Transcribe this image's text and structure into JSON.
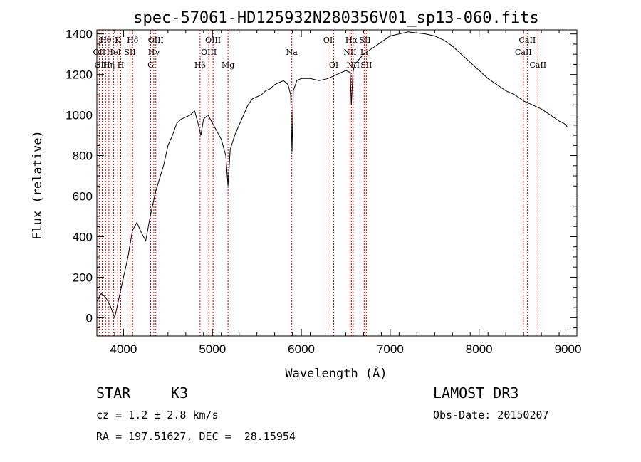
{
  "chart_data": {
    "type": "line",
    "title": "spec-57061-HD125932N280356V01_sp13-060.fits",
    "xlabel": "Wavelength (Å)",
    "ylabel": "Flux (relative)",
    "xlim": [
      3700,
      9100
    ],
    "ylim": [
      -90,
      1420
    ],
    "x_ticks": [
      4000,
      5000,
      6000,
      7000,
      8000,
      9000
    ],
    "y_ticks": [
      0,
      200,
      400,
      600,
      800,
      1000,
      1200,
      1400
    ],
    "line_color": "#000000",
    "marker_color": "#cc0000",
    "spectrum_x": [
      3700,
      3750,
      3800,
      3850,
      3900,
      3950,
      4000,
      4050,
      4100,
      4150,
      4200,
      4250,
      4300,
      4330,
      4360,
      4400,
      4450,
      4500,
      4550,
      4600,
      4650,
      4700,
      4750,
      4800,
      4850,
      4870,
      4900,
      4950,
      5000,
      5050,
      5100,
      5150,
      5175,
      5200,
      5250,
      5300,
      5350,
      5400,
      5450,
      5500,
      5550,
      5600,
      5650,
      5700,
      5750,
      5800,
      5850,
      5880,
      5895,
      5910,
      5950,
      6000,
      6100,
      6200,
      6300,
      6400,
      6500,
      6550,
      6563,
      6580,
      6600,
      6700,
      6800,
      6900,
      7000,
      7100,
      7200,
      7300,
      7400,
      7500,
      7600,
      7700,
      7800,
      7900,
      8000,
      8100,
      8200,
      8300,
      8400,
      8500,
      8600,
      8700,
      8800,
      8900,
      8950,
      8980,
      8990
    ],
    "spectrum_y": [
      80,
      120,
      100,
      60,
      0,
      100,
      200,
      300,
      430,
      470,
      420,
      380,
      500,
      560,
      620,
      680,
      750,
      850,
      900,
      960,
      980,
      990,
      1000,
      1020,
      940,
      900,
      980,
      1000,
      960,
      920,
      880,
      800,
      650,
      830,
      900,
      950,
      1000,
      1050,
      1080,
      1090,
      1100,
      1120,
      1130,
      1150,
      1160,
      1170,
      1150,
      1100,
      820,
      1120,
      1170,
      1180,
      1180,
      1170,
      1180,
      1200,
      1220,
      1210,
      1050,
      1210,
      1250,
      1300,
      1330,
      1360,
      1390,
      1400,
      1410,
      1405,
      1400,
      1390,
      1370,
      1340,
      1300,
      1260,
      1220,
      1180,
      1150,
      1120,
      1100,
      1070,
      1050,
      1030,
      1000,
      970,
      960,
      950,
      940
    ],
    "spectral_lines": [
      {
        "label": "Hθ",
        "wavelength": 3798,
        "row": 0
      },
      {
        "label": "OII",
        "wavelength": 3727,
        "row": 1
      },
      {
        "label": "OIII",
        "wavelength": 3760,
        "row": 2
      },
      {
        "label": "HeI",
        "wavelength": 3889,
        "row": 1
      },
      {
        "label": "Hη",
        "wavelength": 3835,
        "row": 2
      },
      {
        "label": "K",
        "wavelength": 3934,
        "row": 0
      },
      {
        "label": "SII",
        "wavelength": 4072,
        "row": 1
      },
      {
        "label": "H",
        "wavelength": 3969,
        "row": 2
      },
      {
        "label": "Hδ",
        "wavelength": 4102,
        "row": 0
      },
      {
        "label": "OIII",
        "wavelength": 4363,
        "row": 0
      },
      {
        "label": "Hγ",
        "wavelength": 4340,
        "row": 1
      },
      {
        "label": "G",
        "wavelength": 4305,
        "row": 2
      },
      {
        "label": "Hβ",
        "wavelength": 4861,
        "row": 2
      },
      {
        "label": "OIII",
        "wavelength": 5007,
        "row": 0
      },
      {
        "label": "OIII",
        "wavelength": 4959,
        "row": 1
      },
      {
        "label": "Mg",
        "wavelength": 5175,
        "row": 2
      },
      {
        "label": "Na",
        "wavelength": 5893,
        "row": 1
      },
      {
        "label": "OI",
        "wavelength": 6300,
        "row": 0
      },
      {
        "label": "OI",
        "wavelength": 6364,
        "row": 2
      },
      {
        "label": "Hα",
        "wavelength": 6563,
        "row": 0
      },
      {
        "label": "NII",
        "wavelength": 6548,
        "row": 1
      },
      {
        "label": "NII",
        "wavelength": 6583,
        "row": 2
      },
      {
        "label": "SII",
        "wavelength": 6716,
        "row": 0
      },
      {
        "label": "Li",
        "wavelength": 6707,
        "row": 1
      },
      {
        "label": "SII",
        "wavelength": 6731,
        "row": 2
      },
      {
        "label": "CaII",
        "wavelength": 8542,
        "row": 0
      },
      {
        "label": "CaII",
        "wavelength": 8498,
        "row": 1
      },
      {
        "label": "CaII",
        "wavelength": 8662,
        "row": 2
      }
    ]
  },
  "info": {
    "object_class": "STAR",
    "subclass": "K3",
    "survey": "LAMOST DR3",
    "cz": "cz = 1.2 ± 2.8 km/s",
    "obs_date": "Obs-Date: 20150207",
    "coords": "RA = 197.51627, DEC =  28.15954"
  }
}
